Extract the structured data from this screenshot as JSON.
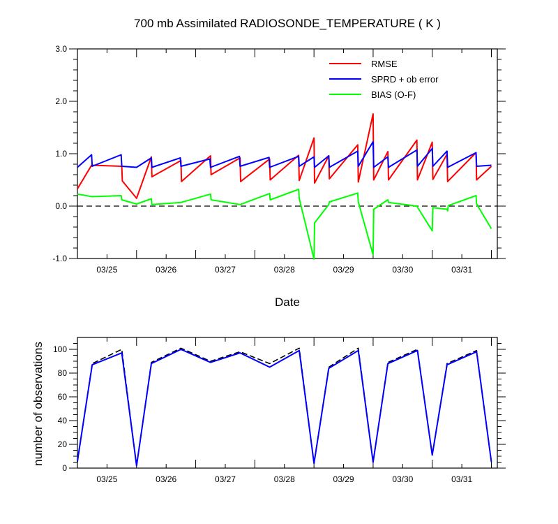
{
  "chart_data": [
    {
      "type": "line",
      "title": "700 mb Assimilated RADIOSONDE_TEMPERATURE ( K )",
      "xlabel": "Date",
      "ylabel": "",
      "xlim": [
        0,
        7.1
      ],
      "ylim": [
        -1.0,
        3.0
      ],
      "x_tick_labels": [
        "03/25",
        "03/26",
        "03/27",
        "03/28",
        "03/29",
        "03/30",
        "03/31"
      ],
      "y_tick_labels": [
        "-1.0",
        "0.0",
        "1.0",
        "2.0",
        "3.0"
      ],
      "y_ticks": [
        -1.0,
        0.0,
        1.0,
        2.0,
        3.0
      ],
      "zero_line": true,
      "grid": false,
      "legend_position": "top-right",
      "series": [
        {
          "name": "RMSE",
          "color": "#ff0000",
          "points": [
            [
              0,
              0.33
            ],
            [
              0.24,
              0.78
            ],
            [
              0.25,
              0.78
            ],
            [
              0.75,
              0.76
            ],
            [
              0.76,
              0.48
            ],
            [
              1.0,
              0.15
            ],
            [
              1.25,
              0.94
            ],
            [
              1.26,
              0.56
            ],
            [
              1.75,
              0.87
            ],
            [
              1.76,
              0.47
            ],
            [
              2.25,
              0.96
            ],
            [
              2.26,
              0.6
            ],
            [
              2.75,
              0.92
            ],
            [
              2.76,
              0.47
            ],
            [
              3.25,
              0.9
            ],
            [
              3.26,
              0.5
            ],
            [
              3.74,
              0.97
            ],
            [
              3.75,
              0.49
            ],
            [
              4.0,
              1.3
            ],
            [
              4.01,
              0.44
            ],
            [
              4.25,
              0.96
            ],
            [
              4.26,
              0.52
            ],
            [
              4.74,
              1.17
            ],
            [
              4.75,
              0.46
            ],
            [
              5.0,
              1.76
            ],
            [
              5.01,
              0.5
            ],
            [
              5.25,
              1.04
            ],
            [
              5.26,
              0.5
            ],
            [
              5.74,
              1.26
            ],
            [
              5.75,
              0.5
            ],
            [
              6.0,
              1.22
            ],
            [
              6.01,
              0.51
            ],
            [
              6.25,
              0.99
            ],
            [
              6.26,
              0.47
            ],
            [
              6.74,
              1.02
            ],
            [
              6.75,
              0.5
            ],
            [
              7.0,
              0.76
            ]
          ]
        },
        {
          "name": "SPRD + ob error",
          "color": "#0000ff",
          "points": [
            [
              0,
              0.74
            ],
            [
              0.24,
              0.98
            ],
            [
              0.25,
              0.76
            ],
            [
              0.74,
              0.98
            ],
            [
              0.75,
              0.76
            ],
            [
              1.0,
              0.74
            ],
            [
              1.25,
              0.92
            ],
            [
              1.26,
              0.74
            ],
            [
              1.74,
              0.92
            ],
            [
              1.75,
              0.76
            ],
            [
              2.24,
              0.9
            ],
            [
              2.25,
              0.74
            ],
            [
              2.74,
              0.95
            ],
            [
              2.75,
              0.76
            ],
            [
              3.24,
              0.93
            ],
            [
              3.25,
              0.74
            ],
            [
              3.74,
              0.95
            ],
            [
              3.75,
              0.76
            ],
            [
              4.0,
              0.94
            ],
            [
              4.01,
              0.74
            ],
            [
              4.25,
              0.96
            ],
            [
              4.26,
              0.74
            ],
            [
              4.74,
              1.05
            ],
            [
              4.75,
              0.76
            ],
            [
              5.0,
              1.23
            ],
            [
              5.01,
              0.74
            ],
            [
              5.25,
              0.94
            ],
            [
              5.26,
              0.74
            ],
            [
              5.74,
              1.07
            ],
            [
              5.75,
              0.76
            ],
            [
              6.0,
              1.1
            ],
            [
              6.01,
              0.76
            ],
            [
              6.25,
              1.05
            ],
            [
              6.26,
              0.74
            ],
            [
              6.74,
              1.02
            ],
            [
              6.75,
              0.76
            ],
            [
              7.0,
              0.78
            ]
          ]
        },
        {
          "name": "BIAS (O-F)",
          "color": "#00ff00",
          "points": [
            [
              0,
              0.23
            ],
            [
              0.25,
              0.18
            ],
            [
              0.74,
              0.2
            ],
            [
              0.75,
              0.12
            ],
            [
              1.0,
              0.04
            ],
            [
              1.25,
              0.14
            ],
            [
              1.26,
              0.03
            ],
            [
              1.75,
              0.07
            ],
            [
              2.25,
              0.23
            ],
            [
              2.26,
              0.12
            ],
            [
              2.75,
              0.03
            ],
            [
              3.25,
              0.24
            ],
            [
              3.26,
              0.12
            ],
            [
              3.74,
              0.32
            ],
            [
              3.75,
              0.15
            ],
            [
              4.0,
              -1.01
            ],
            [
              4.01,
              -0.32
            ],
            [
              4.25,
              0.03
            ],
            [
              4.26,
              0.08
            ],
            [
              4.74,
              0.25
            ],
            [
              4.75,
              0.08
            ],
            [
              5.0,
              -0.93
            ],
            [
              5.01,
              -0.06
            ],
            [
              5.25,
              0.12
            ],
            [
              5.26,
              0.07
            ],
            [
              5.74,
              0.0
            ],
            [
              5.75,
              -0.02
            ],
            [
              6.0,
              -0.47
            ],
            [
              6.01,
              -0.03
            ],
            [
              6.25,
              -0.06
            ],
            [
              6.26,
              -0.09
            ],
            [
              6.27,
              0.01
            ],
            [
              6.74,
              0.2
            ],
            [
              6.75,
              0.04
            ],
            [
              7.0,
              -0.43
            ]
          ]
        }
      ]
    },
    {
      "type": "line",
      "title": "",
      "xlabel": "",
      "ylabel": "number of observations",
      "xlim": [
        0,
        7.1
      ],
      "ylim": [
        0,
        110
      ],
      "x_tick_labels": [
        "03/25",
        "03/26",
        "03/27",
        "03/28",
        "03/29",
        "03/30",
        "03/31"
      ],
      "y_tick_labels": [
        "0",
        "20",
        "40",
        "60",
        "80",
        "100"
      ],
      "y_ticks": [
        0,
        20,
        40,
        60,
        80,
        100
      ],
      "grid": false,
      "series": [
        {
          "style": "dashed",
          "color": "#000000",
          "points": [
            [
              0,
              5
            ],
            [
              0.25,
              88
            ],
            [
              0.75,
              100
            ],
            [
              1.0,
              2
            ],
            [
              1.25,
              89
            ],
            [
              1.75,
              101
            ],
            [
              2.25,
              90
            ],
            [
              2.75,
              98
            ],
            [
              3.25,
              88
            ],
            [
              3.75,
              101
            ],
            [
              4.0,
              4
            ],
            [
              4.25,
              85
            ],
            [
              4.75,
              101
            ],
            [
              5.0,
              5
            ],
            [
              5.25,
              89
            ],
            [
              5.75,
              100
            ],
            [
              6.0,
              11
            ],
            [
              6.25,
              88
            ],
            [
              6.75,
              99
            ],
            [
              7.0,
              5
            ]
          ]
        },
        {
          "style": "solid",
          "color": "#0000ff",
          "points": [
            [
              0,
              6
            ],
            [
              0.25,
              87
            ],
            [
              0.75,
              97
            ],
            [
              1.0,
              2
            ],
            [
              1.25,
              88
            ],
            [
              1.75,
              100
            ],
            [
              2.25,
              89
            ],
            [
              2.75,
              97
            ],
            [
              3.25,
              85
            ],
            [
              3.75,
              99
            ],
            [
              4.0,
              4
            ],
            [
              4.25,
              84
            ],
            [
              4.75,
              99
            ],
            [
              5.0,
              5
            ],
            [
              5.25,
              88
            ],
            [
              5.75,
              99
            ],
            [
              6.0,
              11
            ],
            [
              6.25,
              87
            ],
            [
              6.75,
              98
            ],
            [
              7.0,
              5
            ]
          ]
        }
      ]
    }
  ]
}
